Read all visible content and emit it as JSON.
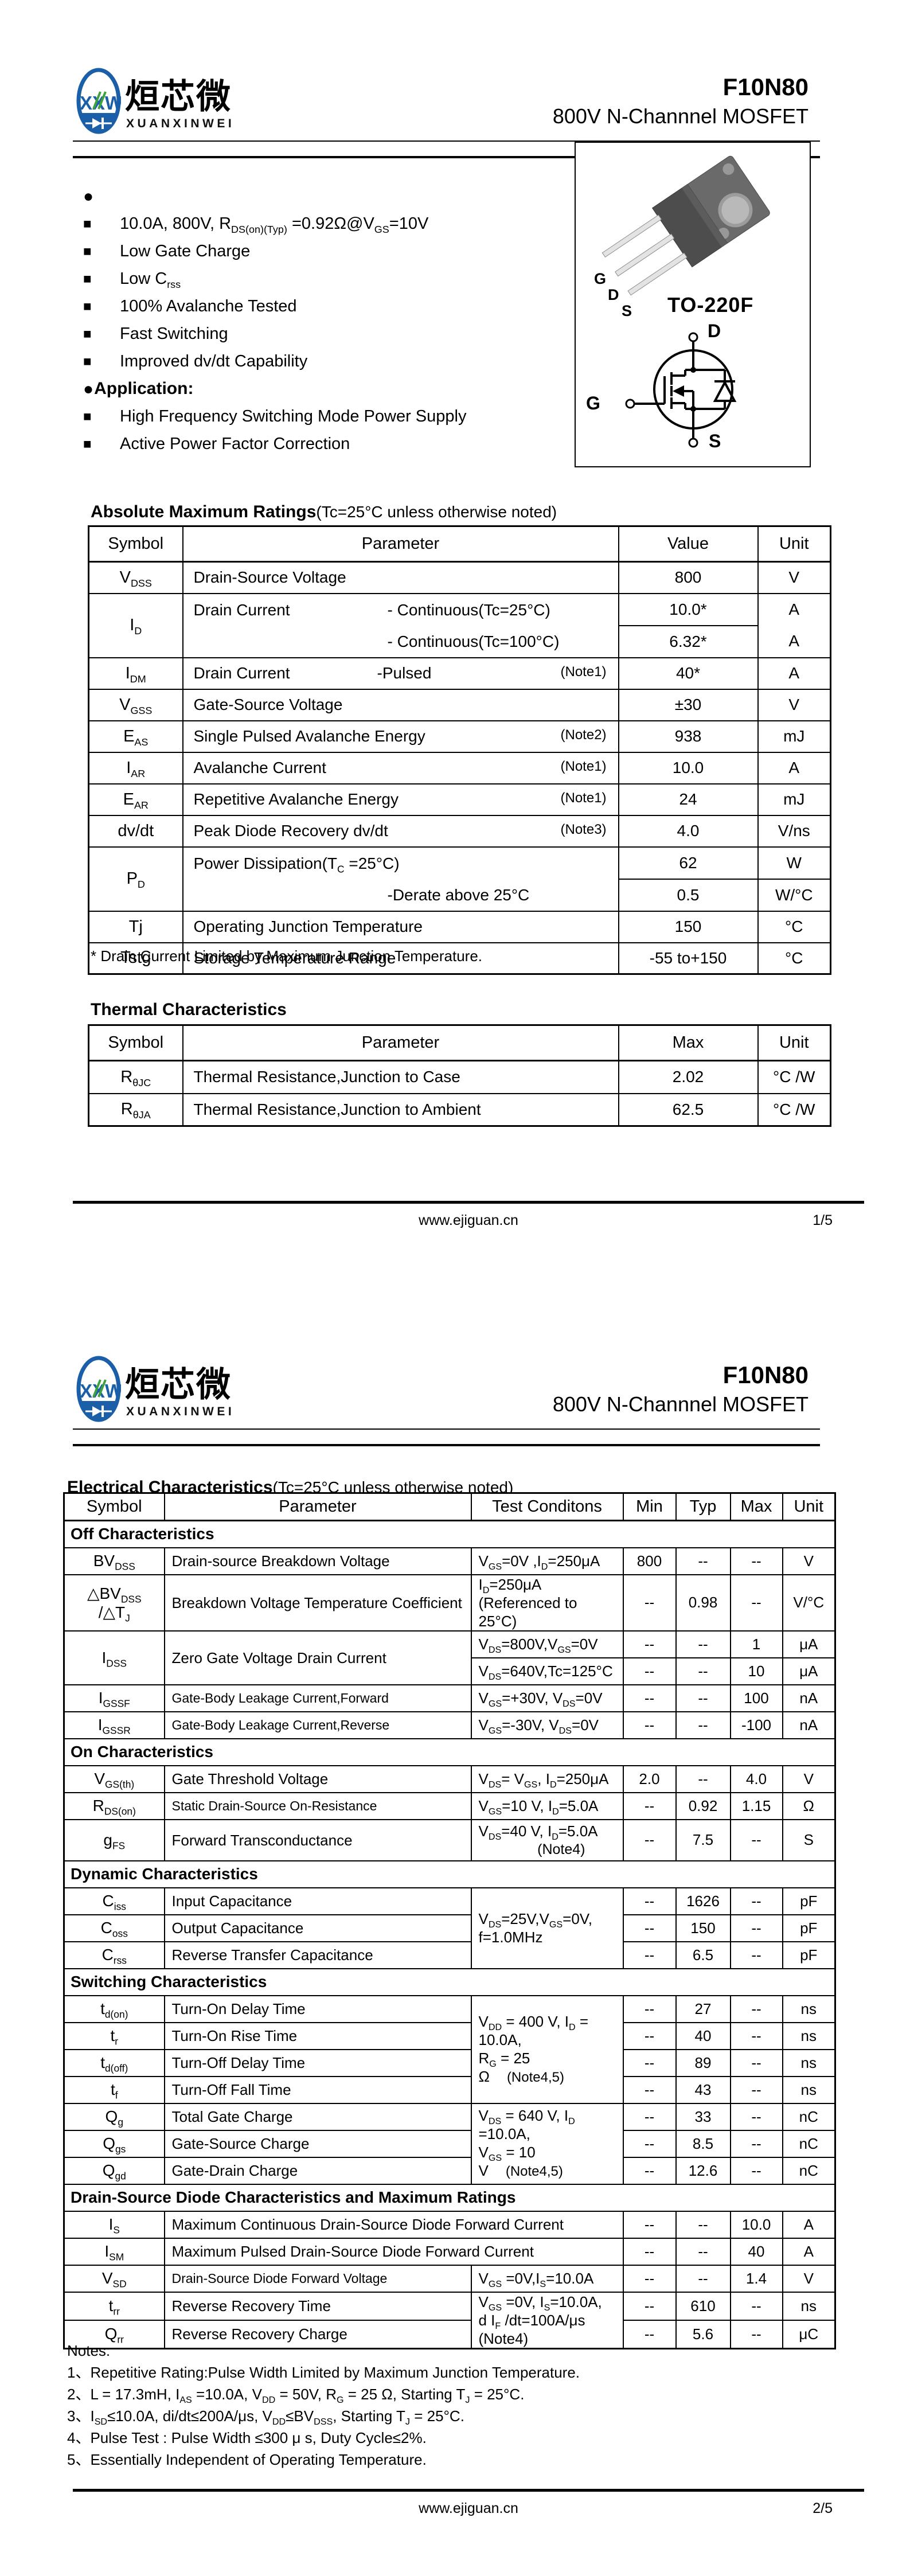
{
  "brand": {
    "monogram": "XXW",
    "name_cn": "烜芯微",
    "name_latin": "XUANXINWEI",
    "blue": "#1a5fa8",
    "green": "#3fa23c"
  },
  "header": {
    "part": "F10N80",
    "subtitle": "800V N-Channnel MOSFET"
  },
  "page1": {
    "features": {
      "lead_bullet": "●",
      "square": "■",
      "items": [
        "10.0A, 800V, R~DS(on)(Typ)~ =0.92Ω@V~GS~=10V",
        "Low Gate Charge",
        "Low C~rss~",
        "100% Avalanche Tested",
        "Fast Switching",
        "Improved dv/dt Capability"
      ],
      "application_label": "Application:",
      "application_items": [
        "High Frequency Switching Mode Power Supply",
        "Active Power Factor Correction"
      ]
    },
    "package": {
      "name": "TO-220F",
      "pin1": "G",
      "pin2": "D",
      "pin3": "S",
      "sym_d": "D",
      "sym_g": "G",
      "sym_s": "S"
    },
    "abs_max": {
      "title": "Absolute Maximum Ratings",
      "title_suffix": "(Tc=25°C unless otherwise noted)",
      "headers": [
        "Symbol",
        "Parameter",
        "Value",
        "Unit"
      ],
      "rows": [
        {
          "sym": "V~DSS~",
          "param": "Drain-Source Voltage",
          "value": "800",
          "unit": "V"
        },
        {
          "sym": "I~D~",
          "param": "Drain Current",
          "cond1": "- Continuous(Tc=25°C)",
          "cond2": "- Continuous(Tc=100°C)",
          "value1": "10.0*",
          "value2": "6.32*",
          "unit1": "A",
          "unit2": "A"
        },
        {
          "sym": "I~DM~",
          "param": "Drain Current",
          "cond": "-Pulsed",
          "note": "(Note1)",
          "value": "40*",
          "unit": "A"
        },
        {
          "sym": "V~GSS~",
          "param": "Gate-Source Voltage",
          "value": "±30",
          "unit": "V"
        },
        {
          "sym": "E~AS~",
          "param": "Single Pulsed Avalanche Energy",
          "note": "(Note2)",
          "value": "938",
          "unit": "mJ"
        },
        {
          "sym": "I~AR~",
          "param": "Avalanche Current",
          "note": "(Note1)",
          "value": "10.0",
          "unit": "A"
        },
        {
          "sym": "E~AR~",
          "param": "Repetitive Avalanche Energy",
          "note": "(Note1)",
          "value": "24",
          "unit": "mJ"
        },
        {
          "sym": "dv/dt",
          "param": "Peak Diode Recovery dv/dt",
          "note": "(Note3)",
          "value": "4.0",
          "unit": "V/ns"
        },
        {
          "sym": "P~D~",
          "param": "Power Dissipation(T~C~ =25°C)",
          "param2": "-Derate above 25°C",
          "value1": "62",
          "value2": "0.5",
          "unit1": "W",
          "unit2": "W/°C"
        },
        {
          "sym": "Tj",
          "param": "Operating Junction Temperature",
          "value": "150",
          "unit": "°C"
        },
        {
          "sym": "Tstg",
          "param": "Storage Temperature Range",
          "value": "-55 to+150",
          "unit": "°C"
        }
      ],
      "footnote": "* Drain Current Limited by Maximum Junction Temperature."
    },
    "thermal": {
      "title": "Thermal Characteristics",
      "headers": [
        "Symbol",
        "Parameter",
        "Max",
        "Unit"
      ],
      "rows": [
        {
          "sym": "R~θJC~",
          "param": "Thermal Resistance,Junction to Case",
          "value": "2.02",
          "unit": "°C /W"
        },
        {
          "sym": "R~θJA~",
          "param": "Thermal Resistance,Junction to Ambient",
          "value": "62.5",
          "unit": "°C /W"
        }
      ]
    },
    "footer": {
      "site": "www.ejiguan.cn",
      "page": "1/5"
    }
  },
  "page2": {
    "elec": {
      "title": "Electrical Characteristics",
      "title_suffix": "(Tc=25°C unless otherwise noted)",
      "headers": [
        "Symbol",
        "Parameter",
        "Test Conditons",
        "Min",
        "Typ",
        "Max",
        "Unit"
      ],
      "sec_off": "Off Characteristics",
      "off": {
        "bv": {
          "sym": "BV~DSS~",
          "param": "Drain-source Breakdown Voltage",
          "cond": "V~GS~=0V ,I~D~=250μA",
          "min": "800",
          "typ": "--",
          "max": "--",
          "unit": "V"
        },
        "dbv": {
          "sym": "△BV~DSS~",
          "sym2": "/△T~J~",
          "param": "Breakdown Voltage Temperature Coefficient",
          "cond": "I~D~=250μA",
          "cond2": "(Referenced to 25°C)",
          "min": "--",
          "typ": "0.98",
          "max": "--",
          "unit": "V/°C"
        },
        "idss": {
          "sym": "I~DSS~",
          "param": "Zero Gate Voltage Drain Current",
          "cond1": "V~DS~=800V,V~GS~=0V",
          "min1": "--",
          "typ1": "--",
          "max1": "1",
          "unit1": "μA",
          "cond2": "V~DS~=640V,Tc=125°C",
          "min2": "--",
          "typ2": "--",
          "max2": "10",
          "unit2": "μA"
        },
        "igssf": {
          "sym": "I~GSSF~",
          "param": "Gate-Body Leakage Current,Forward",
          "cond": "V~GS~=+30V, V~DS~=0V",
          "min": "--",
          "typ": "--",
          "max": "100",
          "unit": "nA"
        },
        "igssr": {
          "sym": "I~GSSR~",
          "param": "Gate-Body Leakage Current,Reverse",
          "cond": "V~GS~=-30V, V~DS~=0V",
          "min": "--",
          "typ": "--",
          "max": "-100",
          "unit": "nA"
        }
      },
      "sec_on": "On Characteristics",
      "on": {
        "vgsth": {
          "sym": "V~GS(th)~",
          "param": "Gate Threshold Voltage",
          "cond": "V~DS~= V~GS~, I~D~=250μA",
          "min": "2.0",
          "typ": "--",
          "max": "4.0",
          "unit": "V"
        },
        "rdson": {
          "sym": "R~DS(on)~",
          "param": "Static Drain-Source On-Resistance",
          "cond": "V~GS~=10 V, I~D~=5.0A",
          "min": "--",
          "typ": "0.92",
          "max": "1.15",
          "unit": "Ω"
        },
        "gfs": {
          "sym": "g~FS~",
          "param": "Forward Transconductance",
          "cond": "V~DS~=40 V, I~D~=5.0A",
          "cond_note": "(Note4)",
          "min": "--",
          "typ": "7.5",
          "max": "--",
          "unit": "S"
        }
      },
      "sec_dyn": "Dynamic Characteristics",
      "dyn_cond1": "V~DS~=25V,V~GS~=0V,",
      "dyn_cond2": "f=1.0MHz",
      "dyn": {
        "ciss": {
          "sym": "C~iss~",
          "param": "Input Capacitance",
          "min": "--",
          "typ": "1626",
          "max": "--",
          "unit": "pF"
        },
        "coss": {
          "sym": "C~oss~",
          "param": "Output Capacitance",
          "min": "--",
          "typ": "150",
          "max": "--",
          "unit": "pF"
        },
        "crss": {
          "sym": "C~rss~",
          "param": "Reverse Transfer Capacitance",
          "min": "--",
          "typ": "6.5",
          "max": "--",
          "unit": "pF"
        }
      },
      "sec_sw": "Switching Characteristics",
      "sw_cond1a": "V~DD~ = 400 V, I~D~ = 10.0A,",
      "sw_cond1b": "R~G~ = 25 Ω",
      "sw_cond1_note": "(Note4,5)",
      "sw1": {
        "tdon": {
          "sym": "t~d(on)~",
          "param": "Turn-On Delay Time",
          "min": "--",
          "typ": "27",
          "max": "--",
          "unit": "ns"
        },
        "tr": {
          "sym": "t~r~",
          "param": "Turn-On Rise Time",
          "min": "--",
          "typ": "40",
          "max": "--",
          "unit": "ns"
        },
        "tdoff": {
          "sym": "t~d(off)~",
          "param": "Turn-Off Delay Time",
          "min": "--",
          "typ": "89",
          "max": "--",
          "unit": "ns"
        },
        "tf": {
          "sym": "t~f~",
          "param": "Turn-Off Fall Time",
          "min": "--",
          "typ": "43",
          "max": "--",
          "unit": "ns"
        }
      },
      "sw_cond2a": "V~DS~ = 640 V, I~D~ =10.0A,",
      "sw_cond2b": "V~GS~ = 10 V",
      "sw_cond2_note": "(Note4,5)",
      "sw2": {
        "qg": {
          "sym": "Q~g~",
          "param": "Total Gate Charge",
          "min": "--",
          "typ": "33",
          "max": "--",
          "unit": "nC"
        },
        "qgs": {
          "sym": "Q~gs~",
          "param": "Gate-Source Charge",
          "min": "--",
          "typ": "8.5",
          "max": "--",
          "unit": "nC"
        },
        "qgd": {
          "sym": "Q~gd~",
          "param": "Gate-Drain Charge",
          "min": "--",
          "typ": "12.6",
          "max": "--",
          "unit": "nC"
        }
      },
      "sec_diode": "Drain-Source Diode Characteristics and Maximum Ratings",
      "diode": {
        "is": {
          "sym": "I~S~",
          "param": "Maximum Continuous Drain-Source Diode Forward Current",
          "min": "--",
          "typ": "--",
          "max": "10.0",
          "unit": "A"
        },
        "ism": {
          "sym": "I~SM~",
          "param": "Maximum Pulsed Drain-Source Diode Forward Current",
          "min": "--",
          "typ": "--",
          "max": "40",
          "unit": "A"
        },
        "vsd": {
          "sym": "V~SD~",
          "param": "Drain-Source Diode Forward Voltage",
          "cond": "V~GS~ =0V,I~S~=10.0A",
          "min": "--",
          "typ": "--",
          "max": "1.4",
          "unit": "V"
        },
        "trr": {
          "sym": "t~rr~",
          "param": "Reverse Recovery Time",
          "min": "--",
          "typ": "610",
          "max": "--",
          "unit": "ns"
        },
        "qrr": {
          "sym": "Q~rr~",
          "param": "Reverse Recovery Charge",
          "min": "--",
          "typ": "5.6",
          "max": "--",
          "unit": "μC"
        }
      },
      "trr_cond1": "V~GS~ =0V, I~S~=10.0A,",
      "trr_cond2": "d I~F~ /dt=100A/μs (Note4)"
    },
    "notes": {
      "label": "Notes:",
      "items": [
        "1、Repetitive Rating:Pulse Width Limited by Maximum Junction Temperature.",
        "2、L = 17.3mH, I~AS~ =10.0A, V~DD~ = 50V, R~G~ = 25 Ω, Starting T~J~ = 25°C.",
        "3、I~SD~≤10.0A, di/dt≤200A/μs, V~DD~≤BV~DSS~, Starting T~J~ = 25°C.",
        "4、Pulse Test : Pulse Width ≤300 μ s, Duty Cycle≤2%.",
        "5、Essentially Independent of Operating Temperature."
      ]
    },
    "footer": {
      "site": "www.ejiguan.cn",
      "page": "2/5"
    }
  }
}
